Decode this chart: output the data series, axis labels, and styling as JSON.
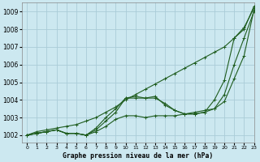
{
  "title": "Graphe pression niveau de la mer (hPa)",
  "bg_color": "#cce8f0",
  "grid_color": "#aaccd8",
  "line_color": "#1e5c1e",
  "xlim": [
    -0.5,
    23
  ],
  "ylim": [
    1001.6,
    1009.5
  ],
  "yticks": [
    1002,
    1003,
    1004,
    1005,
    1006,
    1007,
    1008,
    1009
  ],
  "xticks": [
    0,
    1,
    2,
    3,
    4,
    5,
    6,
    7,
    8,
    9,
    10,
    11,
    12,
    13,
    14,
    15,
    16,
    17,
    18,
    19,
    20,
    21,
    22,
    23
  ],
  "series": [
    [
      1002.0,
      1002.1,
      1002.2,
      1002.3,
      1002.1,
      1002.1,
      1002.0,
      1002.2,
      1002.5,
      1002.9,
      1003.1,
      1003.1,
      1003.0,
      1003.1,
      1003.1,
      1003.1,
      1003.2,
      1003.3,
      1003.4,
      1003.5,
      1003.9,
      1005.2,
      1006.5,
      1009.1
    ],
    [
      1002.0,
      1002.1,
      1002.2,
      1002.3,
      1002.1,
      1002.1,
      1002.0,
      1002.3,
      1002.8,
      1003.3,
      1004.1,
      1004.1,
      1004.1,
      1004.1,
      1003.8,
      1003.4,
      1003.2,
      1003.2,
      1003.3,
      1003.5,
      1004.3,
      1006.0,
      1007.5,
      1009.0
    ],
    [
      1002.0,
      1002.1,
      1002.2,
      1002.3,
      1002.1,
      1002.1,
      1002.0,
      1002.4,
      1003.0,
      1003.5,
      1004.1,
      1004.2,
      1004.1,
      1004.2,
      1003.7,
      1003.4,
      1003.2,
      1003.2,
      1003.3,
      1004.0,
      1005.1,
      1007.5,
      1008.1,
      1009.2
    ],
    [
      1002.0,
      1002.2,
      1002.3,
      1002.4,
      1002.5,
      1002.6,
      1002.8,
      1003.0,
      1003.3,
      1003.6,
      1004.0,
      1004.3,
      1004.6,
      1004.9,
      1005.2,
      1005.5,
      1005.8,
      1006.1,
      1006.4,
      1006.7,
      1007.0,
      1007.5,
      1008.0,
      1009.3
    ]
  ]
}
